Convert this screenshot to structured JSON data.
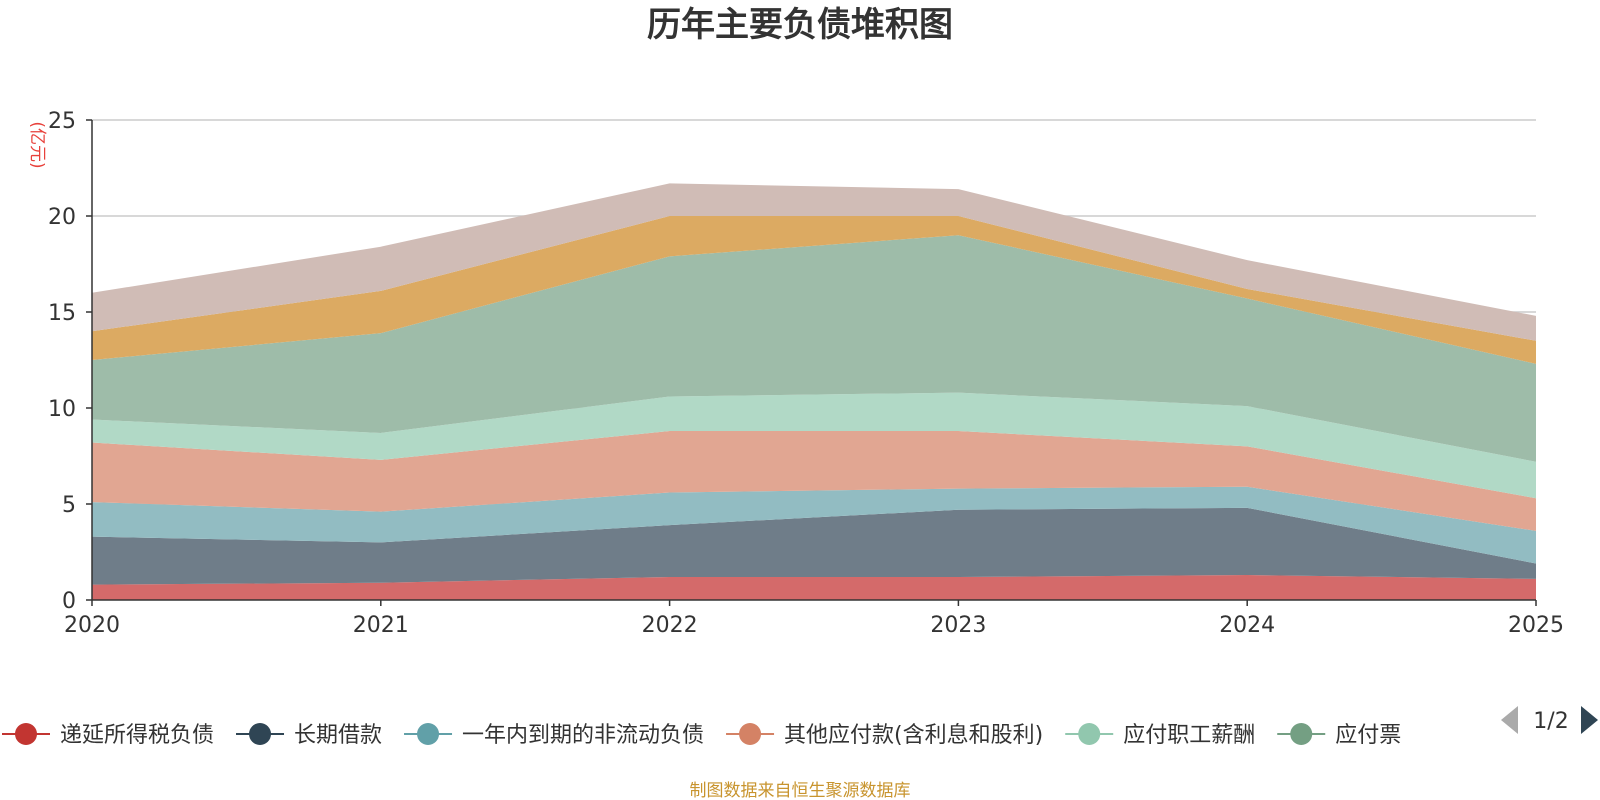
{
  "chart_data": {
    "type": "area",
    "stacked": true,
    "title": "历年主要负债堆积图",
    "unit": "(亿元)",
    "x": [
      "2020",
      "2021",
      "2022",
      "2023",
      "2024",
      "2025"
    ],
    "ylim": [
      0,
      25
    ],
    "yticks": [
      "0",
      "5",
      "10",
      "15",
      "20",
      "25"
    ],
    "grid": true,
    "series": [
      {
        "name": "递延所得税负债",
        "color": "#d46a6a",
        "legend_color": "#c23531",
        "values": [
          0.8,
          0.9,
          1.2,
          1.2,
          1.3,
          1.1
        ]
      },
      {
        "name": "长期借款",
        "color": "#6f7d89",
        "legend_color": "#2f4554",
        "values": [
          2.5,
          2.1,
          2.7,
          3.5,
          3.5,
          0.8
        ]
      },
      {
        "name": "一年内到期的非流动负债",
        "color": "#92bcc2",
        "legend_color": "#61a0a8",
        "values": [
          1.8,
          1.6,
          1.7,
          1.1,
          1.1,
          1.7
        ]
      },
      {
        "name": "其他应付款(含利息和股利)",
        "color": "#e1a692",
        "legend_color": "#d48265",
        "values": [
          3.1,
          2.7,
          3.2,
          3.0,
          2.1,
          1.7
        ]
      },
      {
        "name": "应付职工薪酬",
        "color": "#b1d9c6",
        "legend_color": "#91c7ae",
        "values": [
          1.2,
          1.4,
          1.8,
          2.0,
          2.1,
          1.9
        ]
      },
      {
        "name": "应付票据",
        "color": "#9ebca9",
        "legend_color": "#749f83",
        "values": [
          3.1,
          5.2,
          7.3,
          8.2,
          5.6,
          5.1
        ]
      },
      {
        "name": "",
        "color": "#dcaa62",
        "legend_color": "#ca8622",
        "values": [
          1.5,
          2.2,
          2.1,
          1.0,
          0.5,
          1.2
        ]
      },
      {
        "name": "",
        "color": "#d0bcb6",
        "legend_color": "#bda29a",
        "values": [
          2.0,
          2.3,
          1.7,
          1.4,
          1.5,
          1.3
        ]
      }
    ],
    "legend": {
      "position": "bottom",
      "visible_labels": [
        "递延所得税负债",
        "长期借款",
        "一年内到期的非流动负债",
        "其他应付款(含利息和股利)",
        "应付职工薪酬",
        "应付票"
      ],
      "page": "1/2"
    }
  },
  "source_note": "制图数据来自恒生聚源数据库",
  "colors": {
    "axis": "#333333",
    "grid": "#cccccc",
    "pager_prev": "#aaaaaa",
    "pager_next": "#2f4554"
  }
}
